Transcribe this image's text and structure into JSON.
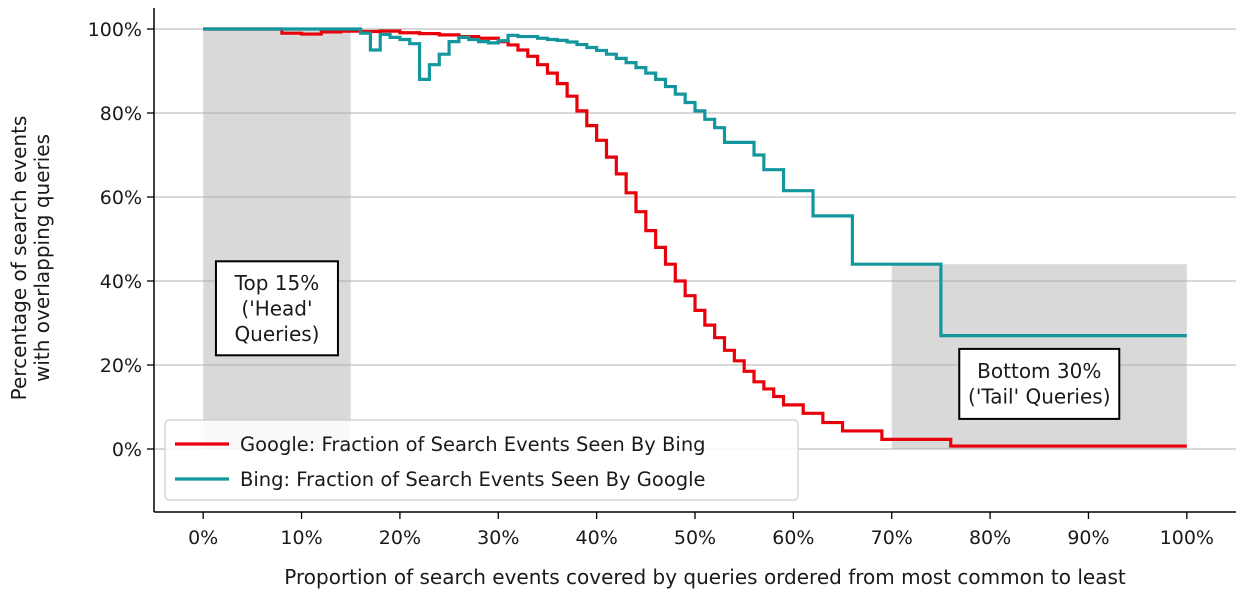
{
  "chart_data": {
    "type": "line",
    "xlabel": "Proportion of search events covered by queries ordered from most common to least",
    "ylabel_lines": [
      "Percentage of search events",
      "with overlapping queries"
    ],
    "xlim": [
      -5,
      105
    ],
    "ylim": [
      -15,
      105
    ],
    "x_ticks": [
      0,
      10,
      20,
      30,
      40,
      50,
      60,
      70,
      80,
      90,
      100
    ],
    "x_tick_labels": [
      "0%",
      "10%",
      "20%",
      "30%",
      "40%",
      "50%",
      "60%",
      "70%",
      "80%",
      "90%",
      "100%"
    ],
    "y_ticks": [
      0,
      20,
      40,
      60,
      80,
      100
    ],
    "y_tick_labels": [
      "0%",
      "20%",
      "40%",
      "60%",
      "80%",
      "100%"
    ],
    "grid": "horizontal",
    "legend_position": "lower-left",
    "shaded_regions": [
      {
        "x0": 0,
        "x1": 15,
        "y0": 0,
        "y1": 100,
        "color": "#d9d9d9"
      },
      {
        "x0": 70,
        "x1": 100,
        "y0": 0,
        "y1": 44,
        "color": "#d9d9d9"
      }
    ],
    "annotations": [
      {
        "lines": [
          "Top 15%",
          "('Head'",
          "Queries)"
        ],
        "x": 7.5,
        "y": 33.5
      },
      {
        "lines": [
          "Bottom 30%",
          "('Tail' Queries)"
        ],
        "x": 85,
        "y": 15.5
      }
    ],
    "series": [
      {
        "name": "Google: Fraction of Search Events Seen By Bing",
        "color": "#e8000b",
        "step": true,
        "x": [
          0,
          8,
          10,
          12,
          14,
          16,
          18,
          20,
          22,
          24,
          26,
          28,
          30,
          31,
          32,
          33,
          34,
          35,
          36,
          37,
          38,
          39,
          40,
          41,
          42,
          43,
          44,
          45,
          46,
          47,
          48,
          49,
          50,
          51,
          52,
          53,
          54,
          55,
          56,
          57,
          58,
          59,
          61,
          63,
          65,
          69,
          76,
          100
        ],
        "y": [
          100,
          99,
          98.8,
          99.3,
          99.5,
          99.4,
          99.5,
          99.1,
          98.9,
          98.6,
          98.2,
          97.8,
          97,
          96.2,
          95,
          93.5,
          91.5,
          89.5,
          87,
          84,
          80.5,
          77,
          73.5,
          69.5,
          65.5,
          61,
          56.5,
          52,
          48,
          44,
          40,
          36.5,
          33,
          29.5,
          26.5,
          23.5,
          21,
          18.5,
          16,
          14.3,
          12.5,
          10.5,
          8.5,
          6.3,
          4.3,
          2.3,
          0.7,
          0.7
        ]
      },
      {
        "name": "Bing: Fraction of Search Events Seen By Google",
        "color": "#13969c",
        "step": true,
        "x": [
          0,
          16,
          17,
          18,
          19,
          20,
          21,
          22,
          23,
          24,
          25,
          26,
          27,
          28,
          29,
          30,
          31,
          32,
          34,
          35,
          36,
          37,
          38,
          39,
          40,
          41,
          42,
          43,
          44,
          45,
          46,
          47,
          48,
          49,
          50,
          51,
          52,
          53,
          54,
          56,
          57,
          59,
          62,
          66,
          75,
          100
        ],
        "y": [
          100,
          99,
          95,
          98.7,
          98,
          97.5,
          96.5,
          88,
          91.5,
          94,
          97,
          98,
          97.5,
          97,
          96.7,
          97.2,
          98.5,
          98.2,
          97.8,
          97.5,
          97.3,
          96.9,
          96.3,
          95.6,
          94.9,
          94,
          93,
          92,
          90.8,
          89.5,
          88,
          86.3,
          84.5,
          82.5,
          80.5,
          78.5,
          76.5,
          73,
          73,
          70,
          66.5,
          61.5,
          55.5,
          44,
          27,
          27
        ]
      }
    ]
  }
}
